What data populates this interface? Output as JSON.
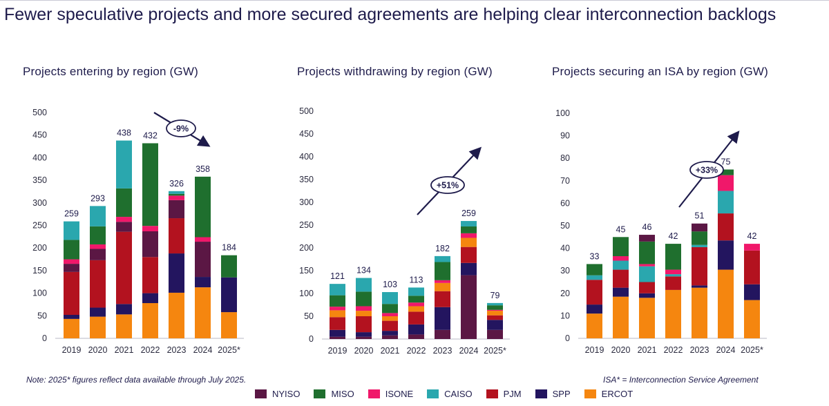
{
  "title": "Fewer speculative projects and more secured agreements are helping clear interconnection backlogs",
  "colors": {
    "NYISO": "#5b1744",
    "MISO": "#1f6f2e",
    "ISONE": "#f0186a",
    "CAISO": "#2aa7ae",
    "PJM": "#b3121f",
    "SPP": "#23155f",
    "ERCOT": "#f5860f"
  },
  "legend": [
    "NYISO",
    "MISO",
    "ISONE",
    "CAISO",
    "PJM",
    "SPP",
    "ERCOT"
  ],
  "notes": {
    "left": "Note: 2025* figures reflect data available through July 2025.",
    "right": "ISA* = Interconnection Service Agreement"
  },
  "chart_data": [
    {
      "type": "bar",
      "stacked": true,
      "title": "Projects entering by region (GW)",
      "categories": [
        "2019",
        "2020",
        "2021",
        "2022",
        "2023",
        "2024",
        "2025*"
      ],
      "ylim": [
        0,
        500
      ],
      "yticks": [
        0,
        50,
        100,
        150,
        200,
        250,
        300,
        350,
        400,
        450,
        500
      ],
      "totals": [
        259,
        293,
        438,
        432,
        326,
        358,
        184
      ],
      "series": [
        {
          "name": "ERCOT",
          "values": [
            43,
            48,
            53,
            78,
            101,
            113,
            58
          ]
        },
        {
          "name": "SPP",
          "values": [
            9,
            20,
            23,
            22,
            87,
            23,
            77
          ]
        },
        {
          "name": "PJM",
          "values": [
            95,
            105,
            160,
            80,
            78,
            0,
            0
          ]
        },
        {
          "name": "NYISO",
          "values": [
            18,
            25,
            22,
            57,
            40,
            78,
            0
          ]
        },
        {
          "name": "ISONE",
          "values": [
            10,
            10,
            11,
            12,
            10,
            10,
            0
          ]
        },
        {
          "name": "MISO",
          "values": [
            43,
            40,
            63,
            183,
            4,
            134,
            49
          ]
        },
        {
          "name": "CAISO",
          "values": [
            41,
            45,
            106,
            0,
            6,
            0,
            0
          ]
        }
      ],
      "annotation": {
        "label": "-9%",
        "direction": "down"
      }
    },
    {
      "type": "bar",
      "stacked": true,
      "title": "Projects withdrawing by region (GW)",
      "categories": [
        "2019",
        "2020",
        "2021",
        "2022",
        "2023",
        "2024",
        "2025*"
      ],
      "ylim": [
        0,
        500
      ],
      "yticks": [
        0,
        50,
        100,
        150,
        200,
        250,
        300,
        350,
        400,
        450,
        500
      ],
      "totals": [
        121,
        134,
        103,
        113,
        182,
        259,
        79
      ],
      "series": [
        {
          "name": "NYISO",
          "values": [
            5,
            5,
            8,
            10,
            20,
            140,
            20
          ]
        },
        {
          "name": "SPP",
          "values": [
            15,
            10,
            10,
            22,
            50,
            27,
            22
          ]
        },
        {
          "name": "PJM",
          "values": [
            28,
            35,
            22,
            28,
            35,
            35,
            10
          ]
        },
        {
          "name": "ERCOT",
          "values": [
            15,
            12,
            10,
            12,
            18,
            20,
            10
          ]
        },
        {
          "name": "ISONE",
          "values": [
            8,
            10,
            7,
            8,
            6,
            10,
            2
          ]
        },
        {
          "name": "MISO",
          "values": [
            25,
            32,
            20,
            15,
            40,
            15,
            10
          ]
        },
        {
          "name": "CAISO",
          "values": [
            25,
            30,
            26,
            18,
            13,
            12,
            5
          ]
        }
      ],
      "annotation": {
        "label": "+51%",
        "direction": "up"
      }
    },
    {
      "type": "bar",
      "stacked": true,
      "title": "Projects securing an ISA by region (GW)",
      "categories": [
        "2019",
        "2020",
        "2021",
        "2022",
        "2023",
        "2024",
        "2025*"
      ],
      "ylim": [
        0,
        100
      ],
      "yticks": [
        0,
        10,
        20,
        30,
        40,
        50,
        60,
        70,
        80,
        90,
        100
      ],
      "totals": [
        33,
        45,
        46,
        42,
        51,
        75,
        42
      ],
      "series": [
        {
          "name": "ERCOT",
          "values": [
            11,
            18.5,
            18,
            21.5,
            22.5,
            30.5,
            17
          ]
        },
        {
          "name": "SPP",
          "values": [
            4,
            4,
            2,
            0,
            1,
            13,
            7
          ]
        },
        {
          "name": "PJM",
          "values": [
            11,
            8,
            5,
            6,
            17,
            12,
            15
          ]
        },
        {
          "name": "CAISO",
          "values": [
            2,
            4,
            7,
            1,
            1,
            10,
            0
          ]
        },
        {
          "name": "ISONE",
          "values": [
            0,
            2,
            1,
            2,
            0,
            7,
            3
          ]
        },
        {
          "name": "MISO",
          "values": [
            5,
            8.5,
            10,
            11.5,
            6,
            2.5,
            0
          ]
        },
        {
          "name": "NYISO",
          "values": [
            0,
            0,
            3,
            0,
            3.5,
            0,
            0
          ]
        }
      ],
      "annotation": {
        "label": "+33%",
        "direction": "up"
      }
    }
  ]
}
